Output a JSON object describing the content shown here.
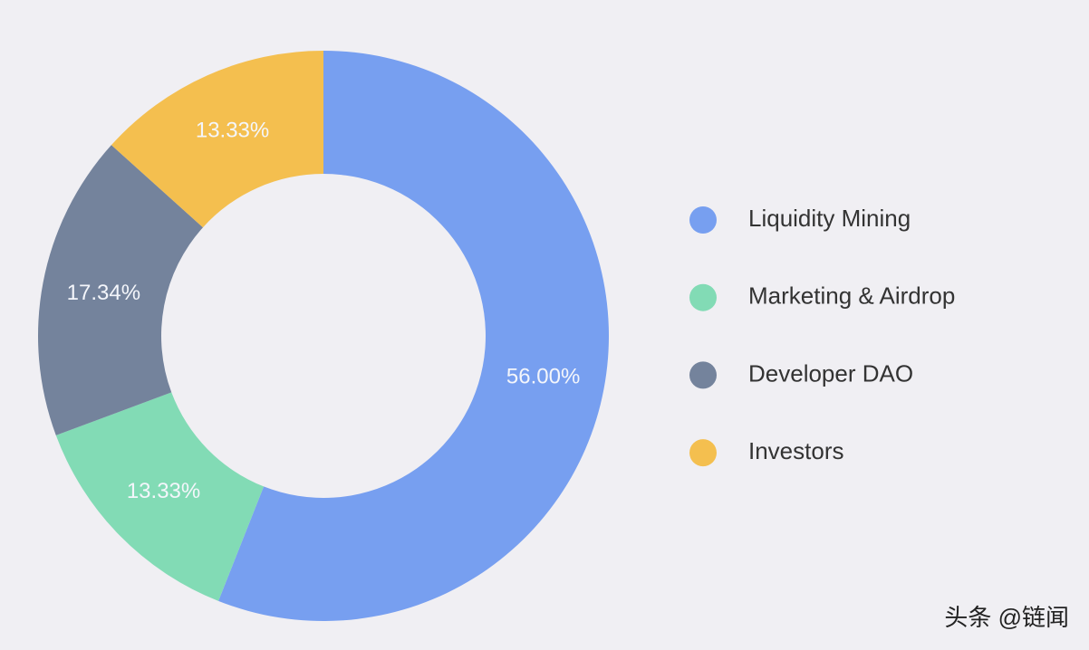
{
  "chart_data": {
    "type": "donut",
    "categories": [
      "Liquidity Mining",
      "Marketing & Airdrop",
      "Developer DAO",
      "Investors"
    ],
    "values": [
      56.0,
      13.33,
      17.34,
      13.33
    ],
    "value_labels": [
      "56.00%",
      "13.33%",
      "17.34%",
      "13.33%"
    ],
    "colors": [
      "#779ff0",
      "#82dbb5",
      "#74839c",
      "#f4bf4f"
    ],
    "legend_position": "right"
  },
  "watermark": "头条 @链闻"
}
